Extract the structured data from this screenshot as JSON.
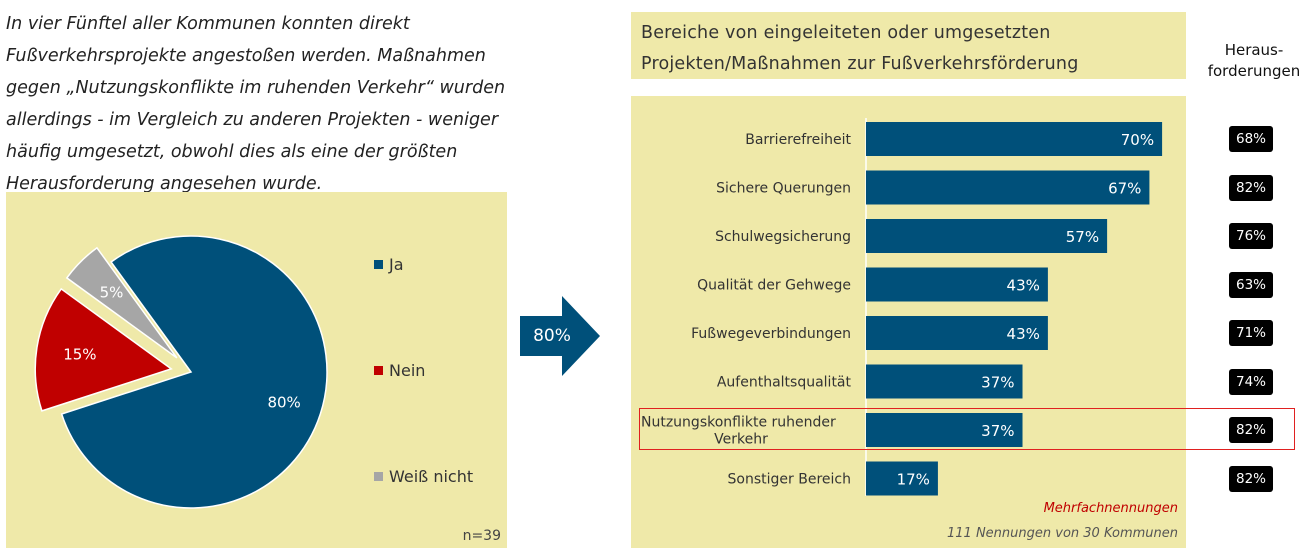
{
  "intro_text": "In vier Fünftel aller Kommunen konnten direkt Fußverkehrsprojekte angestoßen werden. Maßnahmen gegen „Nutzungskonflikte im ruhenden Verkehr“ wurden allerdings - im Vergleich zu anderen Projekten - weniger häufig umgesetzt, obwohl dies als eine der größten Herausforderung angesehen wurde.",
  "arrow_label": "80%",
  "challenges_header": "Heraus-\nforderungen",
  "colors": {
    "panel_bg": "#efe9a9",
    "ja": "#00507a",
    "nein": "#c00000",
    "weiss_nicht": "#a6a6a6",
    "bar": "#00507a",
    "highlight": "#e02020"
  },
  "chart_data": [
    {
      "type": "pie",
      "categories": [
        "Ja",
        "Nein",
        "Weiß nicht"
      ],
      "values": [
        80,
        15,
        5
      ],
      "labels": [
        "80%",
        "15%",
        "5%"
      ],
      "n_label": "n=39",
      "legend_placement": "right"
    },
    {
      "type": "bar",
      "title": "Bereiche von eingeleiteten oder umgesetzten\nProjekten/Maßnahmen  zur Fußverkehrsförderung",
      "categories": [
        "Barrierefreiheit",
        "Sichere Querungen",
        "Schulwegsicherung",
        "Qualität der Gehwege",
        "Fußwegeverbindungen",
        "Aufenthaltsqualität",
        "Nutzungskonflikte ruhender Verkehr",
        "Sonstiger Bereich"
      ],
      "category_lines": [
        [
          "Barrierefreiheit"
        ],
        [
          "Sichere Querungen"
        ],
        [
          "Schulwegsicherung"
        ],
        [
          "Qualität der Gehwege"
        ],
        [
          "Fußwegeverbindungen"
        ],
        [
          "Aufenthaltsqualität"
        ],
        [
          "Nutzungskonflikte ruhender",
          "Verkehr"
        ],
        [
          "Sonstiger Bereich"
        ]
      ],
      "values": [
        70,
        67,
        57,
        43,
        43,
        37,
        37,
        17
      ],
      "value_labels": [
        "70%",
        "67%",
        "57%",
        "43%",
        "43%",
        "37%",
        "37%",
        "17%"
      ],
      "challenges": [
        "68%",
        "82%",
        "76%",
        "63%",
        "71%",
        "74%",
        "82%",
        "82%"
      ],
      "highlighted_category": "Nutzungskonflikte ruhender Verkehr",
      "note_multiple": "Mehrfachnennungen",
      "note_count": "111 Nennungen von 30 Kommunen",
      "xlim": [
        0,
        100
      ]
    }
  ]
}
